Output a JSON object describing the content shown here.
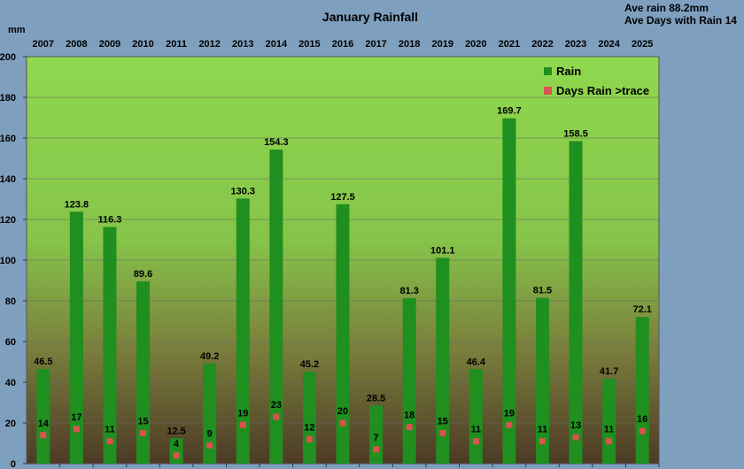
{
  "chart_data": {
    "type": "bar",
    "title": "January  Rainfall",
    "ylabel": "mm",
    "ylim": [
      0,
      200
    ],
    "yticks": [
      0,
      20,
      40,
      60,
      80,
      100,
      120,
      140,
      160,
      180,
      200
    ],
    "grid": true,
    "legend_position": "top-right",
    "notes": [
      "Ave rain 88.2mm",
      "Ave Days with Rain 14"
    ],
    "categories": [
      "2007",
      "2008",
      "2009",
      "2010",
      "2011",
      "2012",
      "2013",
      "2014",
      "2015",
      "2016",
      "2017",
      "2018",
      "2019",
      "2020",
      "2021",
      "2022",
      "2023",
      "2024",
      "2025"
    ],
    "series": [
      {
        "name": "Rain",
        "type": "bar",
        "color": "#1f8f1f",
        "values": [
          46.5,
          123.8,
          116.3,
          89.6,
          12.5,
          49.2,
          130.3,
          154.3,
          45.2,
          127.5,
          28.5,
          81.3,
          101.1,
          46.4,
          169.7,
          81.5,
          158.5,
          41.7,
          72.1
        ],
        "labels": [
          "46.5",
          "123.8",
          "116.3",
          "89.6",
          "12.5",
          "49.2",
          "130.3",
          "154.3",
          "45.2",
          "127.5",
          "28.5",
          "81.3",
          "101.1",
          "46.4",
          "169.7",
          "81.5",
          "158.5",
          "41.7",
          "72.1"
        ]
      },
      {
        "name": "Days Rain >trace",
        "type": "scatter",
        "color": "#d9534f",
        "values": [
          14,
          17,
          11,
          15,
          4,
          9,
          19,
          23,
          12,
          20,
          7,
          18,
          15,
          11,
          19,
          11,
          13,
          11,
          16
        ],
        "labels": [
          "14",
          "17",
          "11",
          "15",
          "4",
          "9",
          "19",
          "23",
          "12",
          "20",
          "7",
          "18",
          "15",
          "11",
          "19",
          "11",
          "13",
          "11",
          "16"
        ]
      }
    ]
  }
}
